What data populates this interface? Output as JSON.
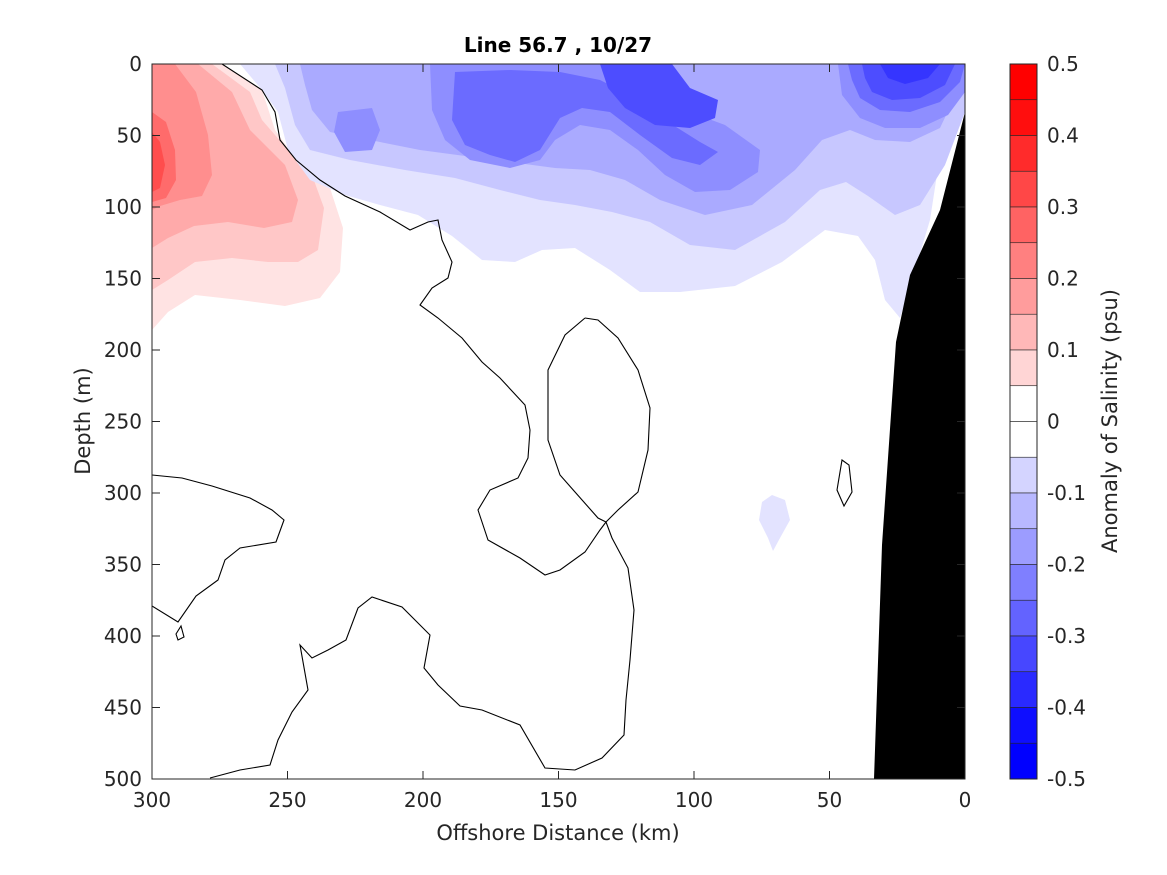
{
  "chart_data": {
    "type": "heatmap",
    "subtype": "filled-contour",
    "title": "Line 56.7 , 10/27",
    "xlabel": "Offshore Distance (km)",
    "ylabel": "Depth (m)",
    "xlim": [
      300,
      0
    ],
    "ylim": [
      0,
      500
    ],
    "x_ticks": [
      300,
      250,
      200,
      150,
      100,
      50,
      0
    ],
    "y_ticks": [
      0,
      50,
      100,
      150,
      200,
      250,
      300,
      350,
      400,
      450,
      500
    ],
    "colorbar": {
      "label": "Anomaly of Salinity (psu)",
      "range": [
        -0.5,
        0.5
      ],
      "step": 0.05,
      "tick_labels": [
        "0.5",
        "0.4",
        "0.3",
        "0.2",
        "0.1",
        "0",
        "-0.1",
        "-0.2",
        "-0.3",
        "-0.4",
        "-0.5"
      ],
      "tick_values": [
        0.5,
        0.4,
        0.3,
        0.2,
        0.1,
        0,
        -0.1,
        -0.2,
        -0.3,
        -0.4,
        -0.5
      ],
      "negative_color": "#0000ff",
      "positive_color": "#ff0000",
      "zero_color": "#ffffff"
    },
    "features": {
      "salty_core": {
        "x_km": 298,
        "depth_m": 75,
        "anomaly": 0.4
      },
      "fresh_core_offshore": {
        "x_km": 115,
        "depth_m": 30,
        "anomaly": -0.3
      },
      "fresh_core_nearshore": {
        "x_km": 25,
        "depth_m": 15,
        "anomaly": -0.35
      },
      "small_fresh_patch": {
        "x_km": 71,
        "depth_m": 318,
        "anomaly": -0.05
      },
      "zero_contour": "black line",
      "bathymetry": "black shelf on the right side"
    }
  }
}
